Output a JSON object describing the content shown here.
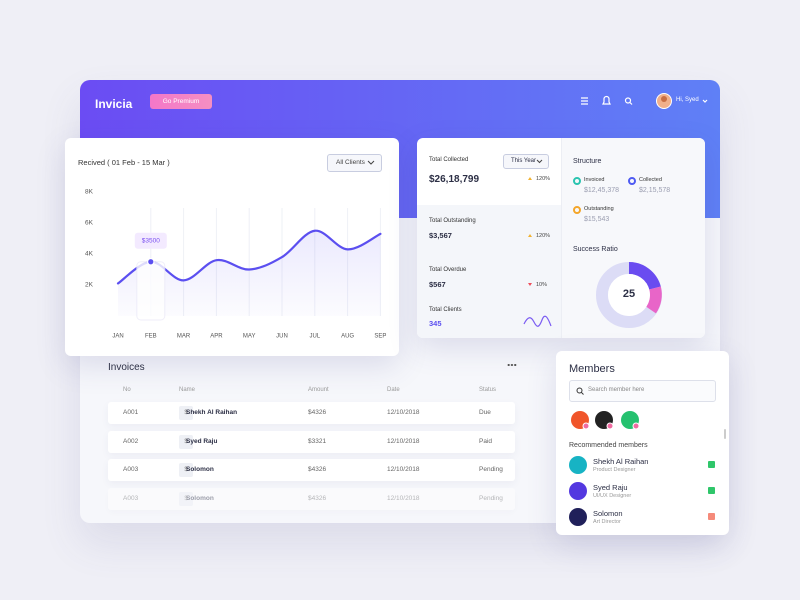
{
  "header": {
    "logo": "Invicia",
    "button": "Go Premium",
    "user": "Hi, Syed"
  },
  "chart_filter": "All Clients",
  "chart_data": {
    "type": "line",
    "title": "Recived ( 01 Feb - 15 Mar )",
    "categories": [
      "JAN",
      "FEB",
      "MAR",
      "APR",
      "MAY",
      "JUN",
      "JUL",
      "AUG",
      "SEP"
    ],
    "values": [
      2100,
      3500,
      2300,
      3600,
      3000,
      3800,
      5500,
      4300,
      5300
    ],
    "color": "#5b4ff0",
    "ylim": [
      0,
      8000
    ],
    "yticks": [
      {
        "value": 2000,
        "label": "2K"
      },
      {
        "value": 4000,
        "label": "4K"
      },
      {
        "value": 6000,
        "label": "6K"
      },
      {
        "value": 8000,
        "label": "8K"
      }
    ],
    "grid": true,
    "annotation": {
      "label": "$3500",
      "value": 3500,
      "category": "FEB"
    }
  },
  "period": "This Year",
  "stats": [
    {
      "label": "Total Collected",
      "value": "$26,18,799",
      "change": "120%",
      "trend": "up"
    },
    {
      "label": "Total Outstanding",
      "value": "$3,567",
      "change": "120%",
      "trend": "up"
    },
    {
      "label": "Total Overdue",
      "value": "$567",
      "change": "10%",
      "trend": "down"
    },
    {
      "label": "Total Clients",
      "value": "345"
    }
  ],
  "structure": {
    "title": "Structure",
    "items": [
      {
        "label": "Invoiced",
        "value": "$12,45,378",
        "color": "#2bc4b0"
      },
      {
        "label": "Collected",
        "value": "$2,15,578",
        "color": "#4f5bf2"
      },
      {
        "label": "Outstanding",
        "value": "$15,543",
        "color": "#f4a62a"
      }
    ]
  },
  "success_ratio": {
    "title": "Success Ratio",
    "value": "25"
  },
  "invoices": {
    "title": "Invoices",
    "icon": "$",
    "columns": [
      "No",
      "Name",
      "Amount",
      "Date",
      "Status"
    ],
    "rows": [
      [
        "A001",
        "Shekh Al Raihan",
        "$4326",
        "12/10/2018",
        "Due"
      ],
      [
        "A002",
        "Syed Raju",
        "$3321",
        "12/10/2018",
        "Paid"
      ],
      [
        "A003",
        "Solomon",
        "$4326",
        "12/10/2018",
        "Pending"
      ],
      [
        "A003",
        "Solomon",
        "$4326",
        "12/10/2018",
        "Pending"
      ]
    ]
  },
  "members": {
    "title": "Members",
    "search": "Search member here",
    "recommended": "Recommended members",
    "people": [
      {
        "name": "Shekh Al Raihan",
        "role": "Product Designer",
        "color": "#17b3c4"
      },
      {
        "name": "Syed Raju",
        "role": "UI/UX Designer",
        "color": "#5338e0"
      },
      {
        "name": "Solomon",
        "role": "Art Director",
        "color": "#20205a"
      }
    ]
  }
}
